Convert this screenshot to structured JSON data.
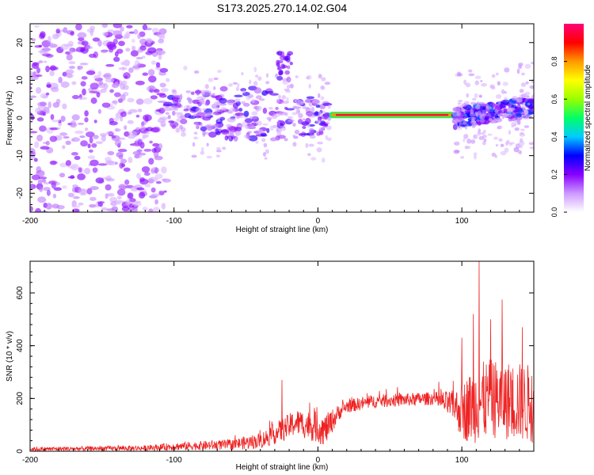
{
  "title": "S173.2025.270.14.02.G04",
  "chart_data": [
    {
      "type": "heatmap",
      "name": "spectrogram",
      "xlabel": "Height of straight line (km)",
      "ylabel": "Frequency (Hz)",
      "xlim": [
        -200,
        150
      ],
      "ylim": [
        -25,
        25
      ],
      "xticks": [
        -200,
        -100,
        0,
        100
      ],
      "yticks": [
        -20,
        -10,
        0,
        10,
        20
      ],
      "colorbar": {
        "label": "Normalized spectral amplitude",
        "range": [
          0,
          1
        ],
        "ticks": [
          0.0,
          0.2,
          0.4,
          0.6,
          0.8
        ],
        "tick_labels": [
          "0.0",
          "0.2",
          "0.4",
          "0.6",
          "0.8"
        ],
        "colormap": [
          "#ffffff",
          "#cc99ff",
          "#8800ff",
          "#0000ff",
          "#00ccff",
          "#00ff66",
          "#99ff00",
          "#ffff00",
          "#ff9900",
          "#ff0000",
          "#ff0077"
        ]
      },
      "features": [
        {
          "desc": "scattered noise",
          "x_range": [
            -200,
            -105
          ],
          "freq_range": [
            -25,
            25
          ],
          "amplitude": 0.05
        },
        {
          "desc": "dispersed band",
          "x_range": [
            -105,
            8
          ],
          "freq_center": [
            2,
            0
          ],
          "amplitude": 0.2
        },
        {
          "desc": "strong line",
          "x_range": [
            8,
            95
          ],
          "freq": 0.8,
          "amplitude": 0.95
        },
        {
          "desc": "band",
          "x_range": [
            95,
            150
          ],
          "freq_center": [
            0,
            3
          ],
          "amplitude": 0.25
        }
      ]
    },
    {
      "type": "line",
      "name": "snr",
      "xlabel": "Height of straight line (km)",
      "ylabel": "SNR (10 * v/v)",
      "xlim": [
        -200,
        150
      ],
      "ylim": [
        0,
        720
      ],
      "xticks": [
        -200,
        -100,
        0,
        100
      ],
      "yticks": [
        0,
        200,
        400,
        600
      ],
      "series": [
        {
          "name": "SNR",
          "color": "#ee2222",
          "envelope": {
            "x": [
              -200,
              -120,
              -100,
              -60,
              -40,
              -25,
              -15,
              0,
              5,
              15,
              20,
              40,
              60,
              80,
              95,
              100,
              110,
              120,
              135,
              150
            ],
            "mean": [
              8,
              12,
              18,
              25,
              40,
              80,
              110,
              90,
              80,
              150,
              170,
              190,
              195,
              200,
              170,
              150,
              180,
              200,
              190,
              180
            ],
            "spread": [
              8,
              10,
              15,
              20,
              30,
              45,
              50,
              60,
              60,
              30,
              25,
              25,
              25,
              25,
              60,
              110,
              150,
              150,
              150,
              150
            ]
          },
          "peaks": [
            [
              112,
              720
            ],
            [
              128,
              575
            ],
            [
              108,
              520
            ],
            [
              120,
              500
            ],
            [
              100,
              430
            ],
            [
              142,
              470
            ],
            [
              -25,
              270
            ]
          ]
        }
      ]
    }
  ]
}
